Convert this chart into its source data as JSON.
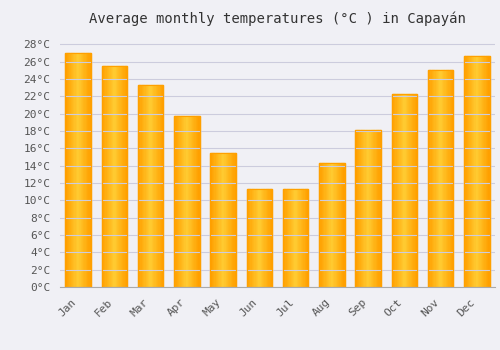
{
  "title": "Average monthly temperatures (°C ) in Capayán",
  "months": [
    "Jan",
    "Feb",
    "Mar",
    "Apr",
    "May",
    "Jun",
    "Jul",
    "Aug",
    "Sep",
    "Oct",
    "Nov",
    "Dec"
  ],
  "values": [
    27.0,
    25.5,
    23.3,
    19.7,
    15.5,
    11.3,
    11.3,
    14.3,
    18.1,
    22.3,
    25.0,
    26.7
  ],
  "bar_color_center": "#FFCC33",
  "bar_color_edge": "#FFA000",
  "background_color": "#F0F0F5",
  "grid_color": "#CCCCDD",
  "ytick_labels": [
    "0°C",
    "2°C",
    "4°C",
    "6°C",
    "8°C",
    "10°C",
    "12°C",
    "14°C",
    "16°C",
    "18°C",
    "20°C",
    "22°C",
    "24°C",
    "26°C",
    "28°C"
  ],
  "ytick_values": [
    0,
    2,
    4,
    6,
    8,
    10,
    12,
    14,
    16,
    18,
    20,
    22,
    24,
    26,
    28
  ],
  "ylim": [
    0,
    29.5
  ],
  "title_fontsize": 10,
  "tick_fontsize": 8,
  "font_family": "monospace",
  "bar_width": 0.7
}
